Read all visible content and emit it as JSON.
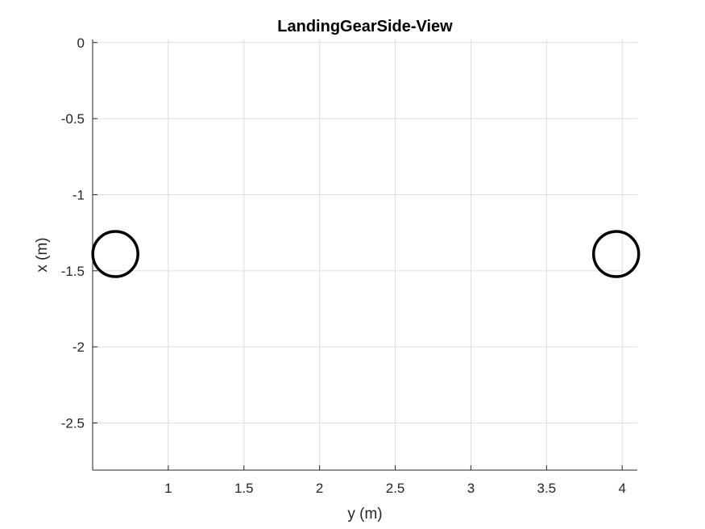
{
  "chart_data": {
    "type": "scatter",
    "title": "LandingGearSide-View",
    "xlabel": "y (m)",
    "ylabel": "x (m)",
    "xlim": [
      0.5,
      4.1
    ],
    "ylim": [
      -2.81,
      0.02
    ],
    "xticks": [
      1,
      1.5,
      2,
      2.5,
      3,
      3.5,
      4
    ],
    "xtick_labels": [
      "1",
      "1.5",
      "2",
      "2.5",
      "3",
      "3.5",
      "4"
    ],
    "yticks": [
      0,
      -0.5,
      -1,
      -1.5,
      -2,
      -2.5
    ],
    "ytick_labels": [
      "0",
      "-0.5",
      "-1",
      "-1.5",
      "-2",
      "-2.5"
    ],
    "grid": true,
    "series": [
      {
        "marker": "open-circle",
        "color": "#000000",
        "points": [
          {
            "x": 0.65,
            "y": -1.39
          },
          {
            "x": 3.96,
            "y": -1.39
          }
        ]
      }
    ]
  }
}
